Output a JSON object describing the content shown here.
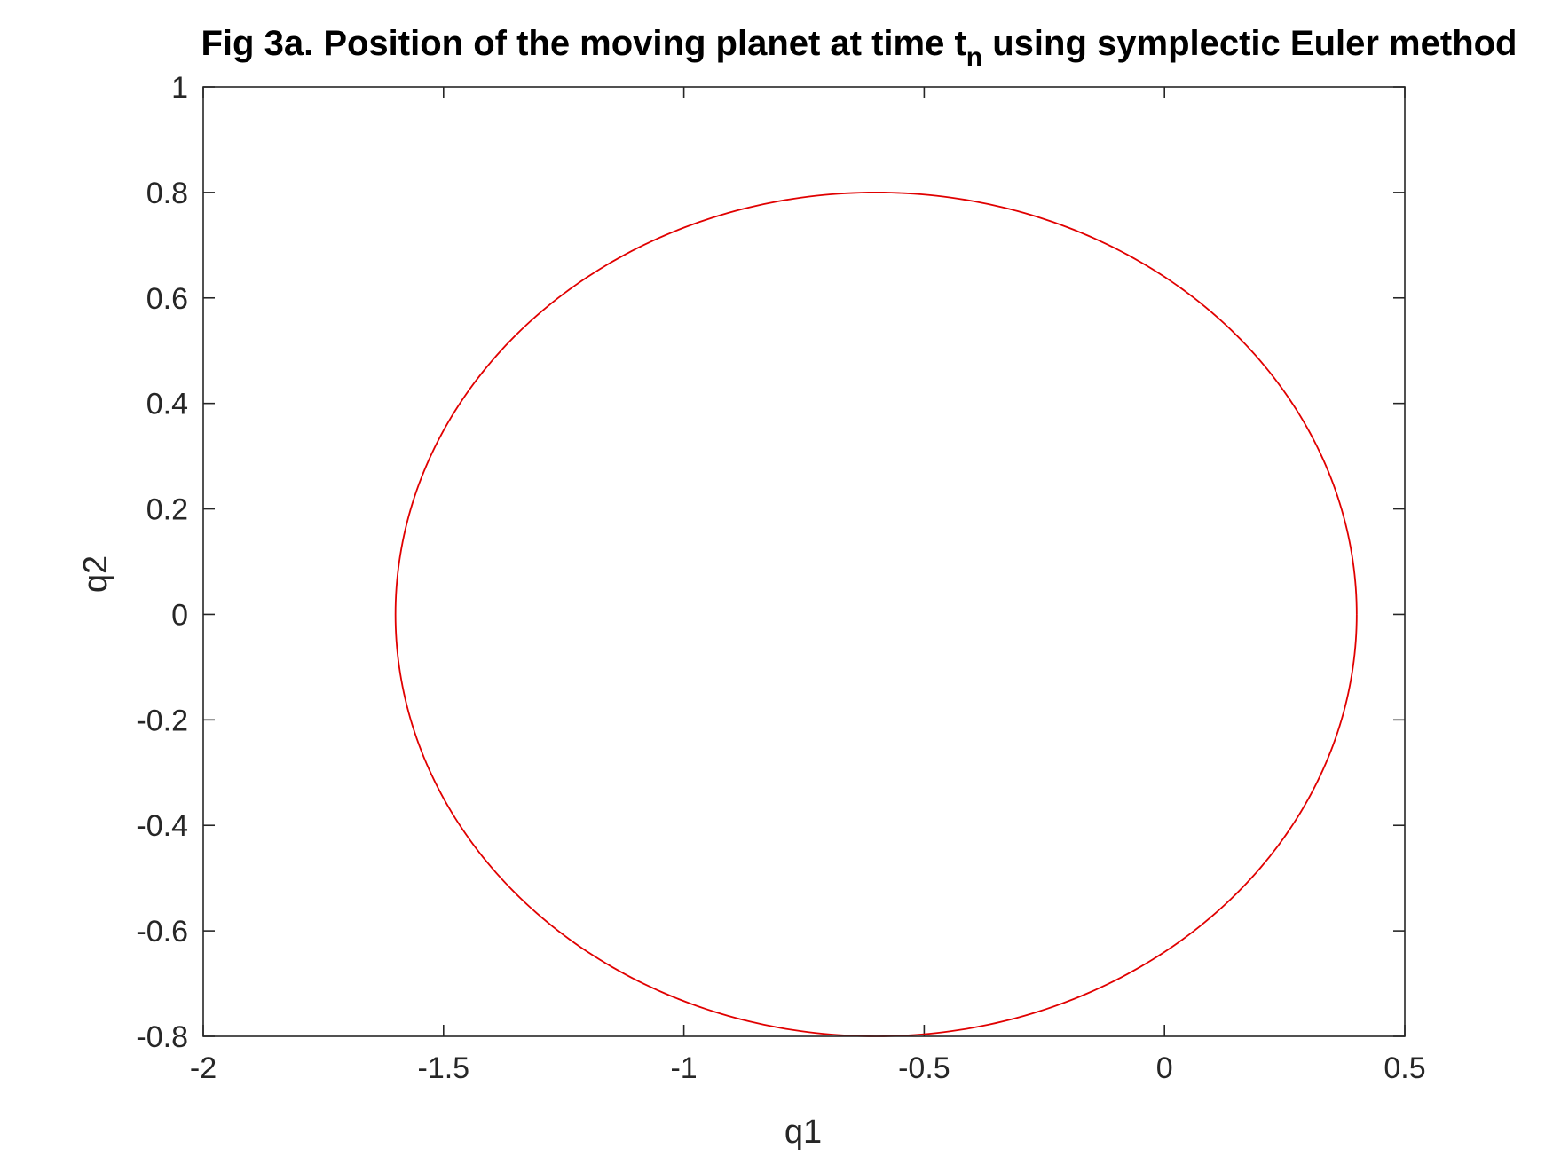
{
  "chart_data": {
    "type": "line",
    "title": "Fig 3a. Position of the moving planet at time t",
    "title_subscript": "n",
    "title_suffix": " using symplectic Euler method",
    "xlabel": "q1",
    "ylabel": "q2",
    "xlim": [
      -2,
      0.5
    ],
    "ylim": [
      -0.8,
      1
    ],
    "xticks": [
      -2,
      -1.5,
      -1,
      -0.5,
      0,
      0.5
    ],
    "xtick_labels": [
      "-2",
      "-1.5",
      "-1",
      "-0.5",
      "0",
      "0.5"
    ],
    "yticks": [
      -0.8,
      -0.6,
      -0.4,
      -0.2,
      0,
      0.2,
      0.4,
      0.6,
      0.8,
      1
    ],
    "ytick_labels": [
      "-0.8",
      "-0.6",
      "-0.4",
      "-0.2",
      "0",
      "0.2",
      "0.4",
      "0.6",
      "0.8",
      "1"
    ],
    "grid": false,
    "series": [
      {
        "color": "#e00000",
        "shape": "ellipse",
        "center": [
          -0.6,
          0.0
        ],
        "semi_axes": [
          1.0,
          0.8
        ],
        "x": [
          0.4,
          0.3,
          -0.1,
          -0.6,
          -1.1,
          -1.5,
          -1.6,
          -1.5,
          -1.1,
          -0.6,
          -0.1,
          0.3,
          0.4
        ],
        "y": [
          0.0,
          0.35,
          0.69,
          0.8,
          0.69,
          0.35,
          0.0,
          -0.35,
          -0.69,
          -0.8,
          -0.69,
          -0.35,
          0.0
        ]
      }
    ]
  }
}
